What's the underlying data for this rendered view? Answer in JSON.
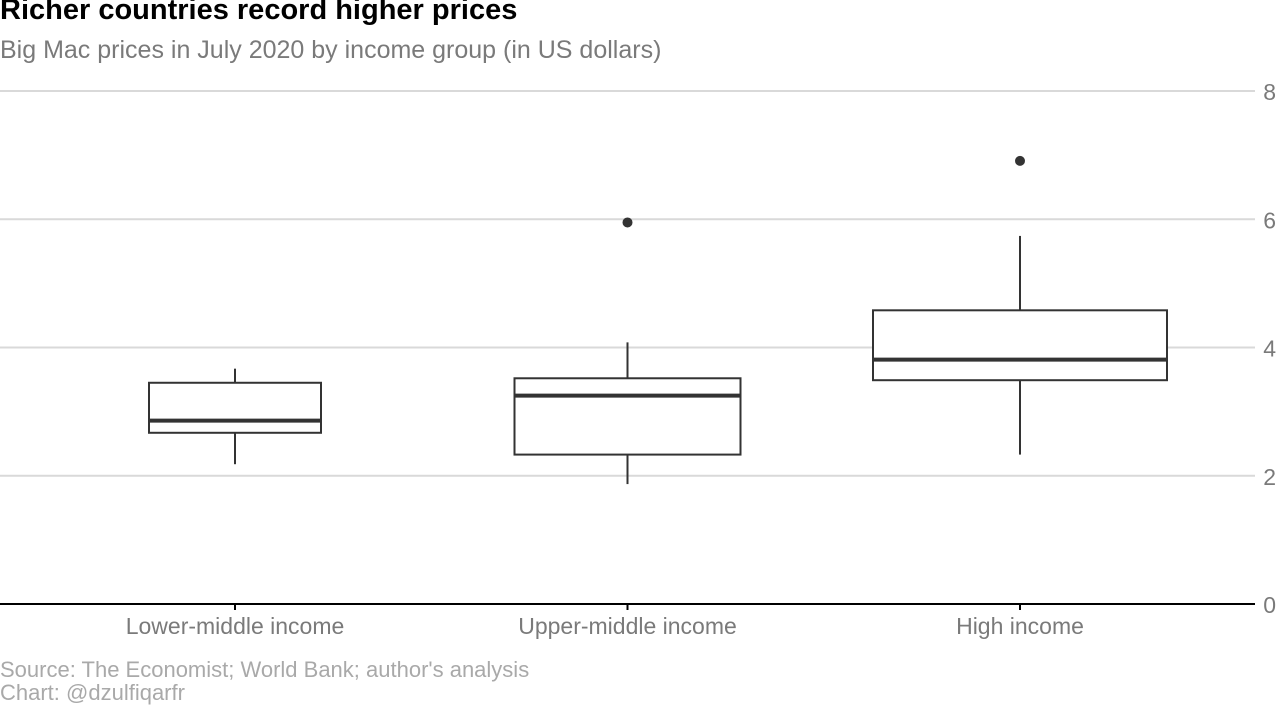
{
  "title": "Richer countries record higher prices",
  "subtitle": "Big Mac prices in July 2020 by income group (in US dollars)",
  "source": "Source: The Economist; World Bank; author's analysis",
  "credit": "Chart: @dzulfiqarfr",
  "chart_data": {
    "type": "boxplot",
    "categories": [
      "Lower-middle income",
      "Upper-middle income",
      "High income"
    ],
    "boxes": [
      {
        "category": "Lower-middle income",
        "whisker_low": 2.18,
        "q1": 2.67,
        "median": 2.86,
        "q3": 3.45,
        "whisker_high": 3.67,
        "outliers": []
      },
      {
        "category": "Upper-middle income",
        "whisker_low": 1.87,
        "q1": 2.33,
        "median": 3.25,
        "q3": 3.52,
        "whisker_high": 4.08,
        "outliers": [
          5.95
        ]
      },
      {
        "category": "High income",
        "whisker_low": 2.33,
        "q1": 3.49,
        "median": 3.81,
        "q3": 4.58,
        "whisker_high": 5.74,
        "outliers": [
          6.91
        ]
      }
    ],
    "y_ticks": [
      0,
      2,
      4,
      6,
      8
    ],
    "ylim": [
      0,
      8
    ],
    "grid": true,
    "y_axis_side": "right",
    "colors": {
      "box": "#333333",
      "grid": "#d9d9d9",
      "axis": "#000000",
      "tick_label": "#7a7a7a"
    }
  }
}
